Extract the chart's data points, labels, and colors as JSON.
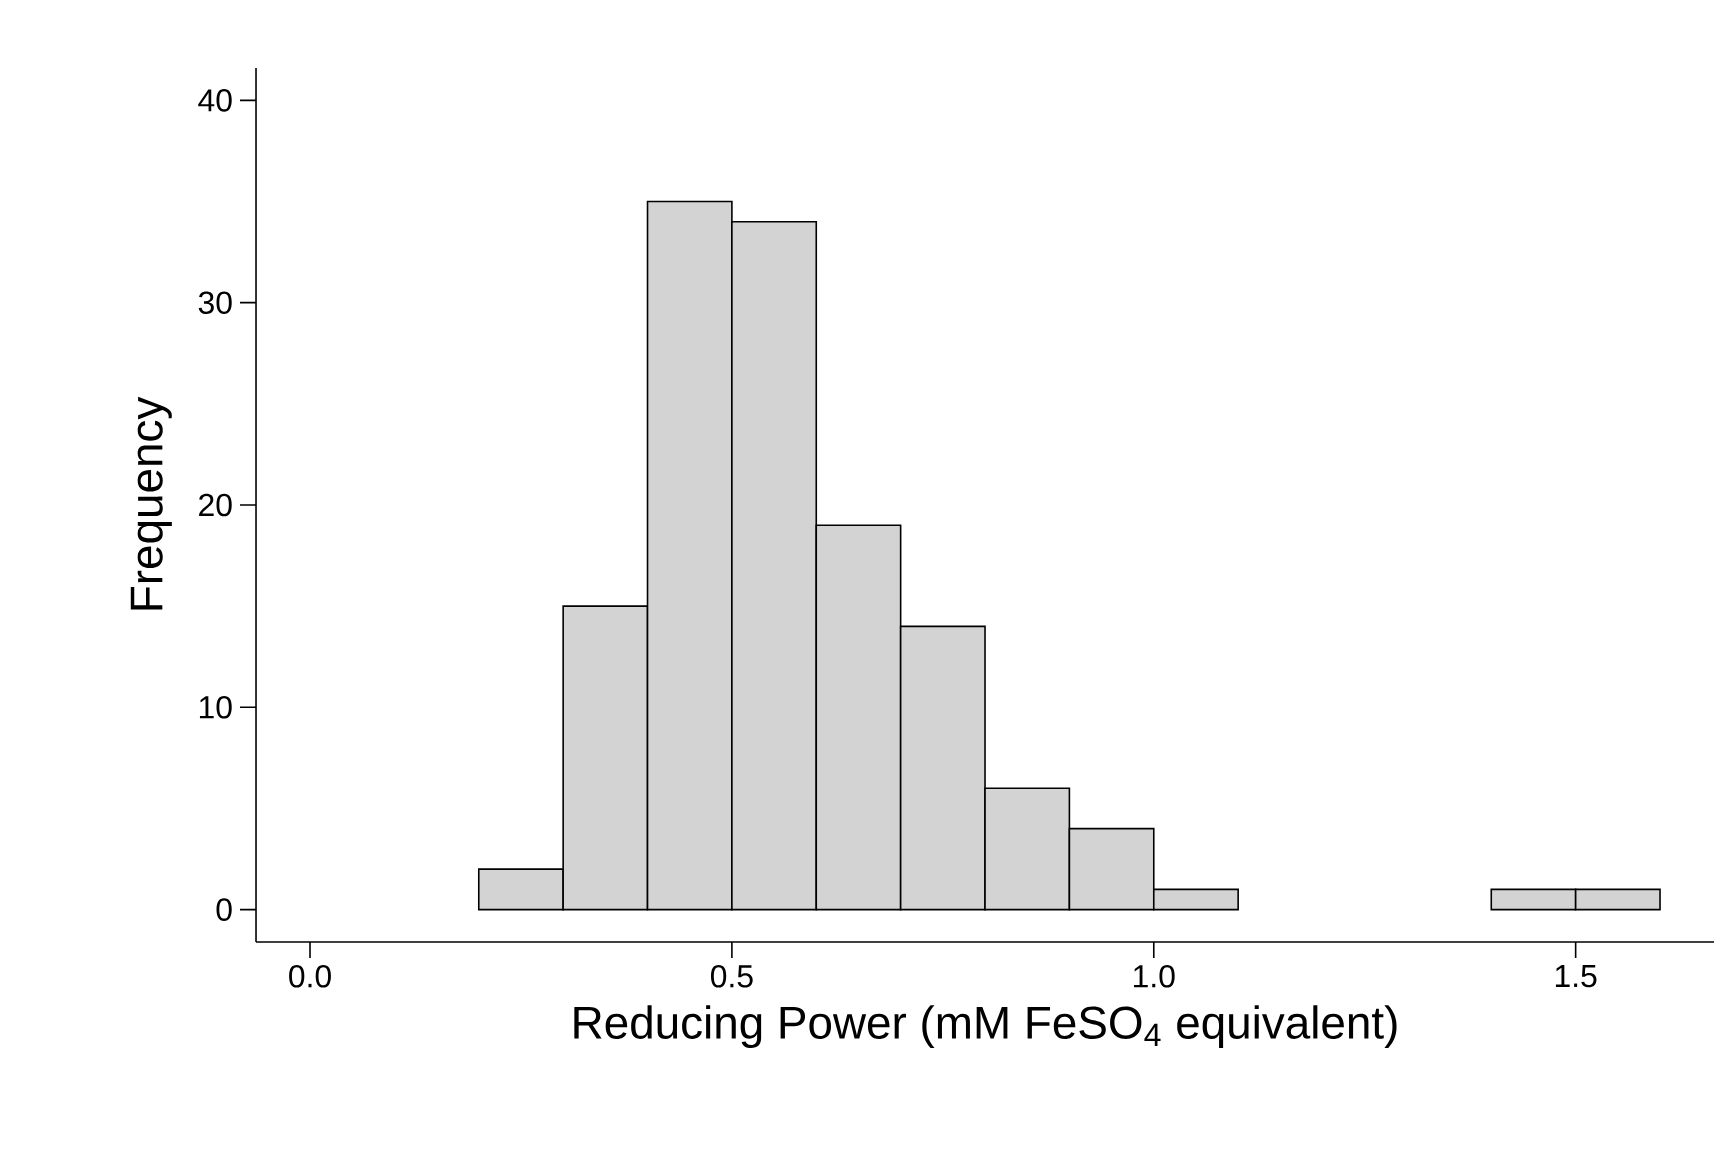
{
  "chart_data": {
    "type": "histogram",
    "xlabel": "Reducing Power (mM FeSO$_{4}$ equivalent)",
    "ylabel": "Frequency",
    "bins": [
      0.2,
      0.3,
      0.4,
      0.5,
      0.6,
      0.7,
      0.8,
      0.9,
      1.0,
      1.1,
      1.2,
      1.3,
      1.4,
      1.5,
      1.6
    ],
    "values": [
      2,
      15,
      35,
      34,
      19,
      14,
      6,
      4,
      1,
      0,
      0,
      0,
      1,
      1
    ],
    "color": "#d3d3d3",
    "xlim": [
      -0.064,
      1.664
    ],
    "ylim": [
      -1.6,
      41.6
    ],
    "xticks": [
      {
        "value": 0,
        "label": "0.0"
      },
      {
        "value": 0.5,
        "label": "0.5"
      },
      {
        "value": 1,
        "label": "1.0"
      },
      {
        "value": 1.5,
        "label": "1.5"
      }
    ],
    "yticks": [
      0,
      10,
      20,
      30,
      40
    ]
  }
}
